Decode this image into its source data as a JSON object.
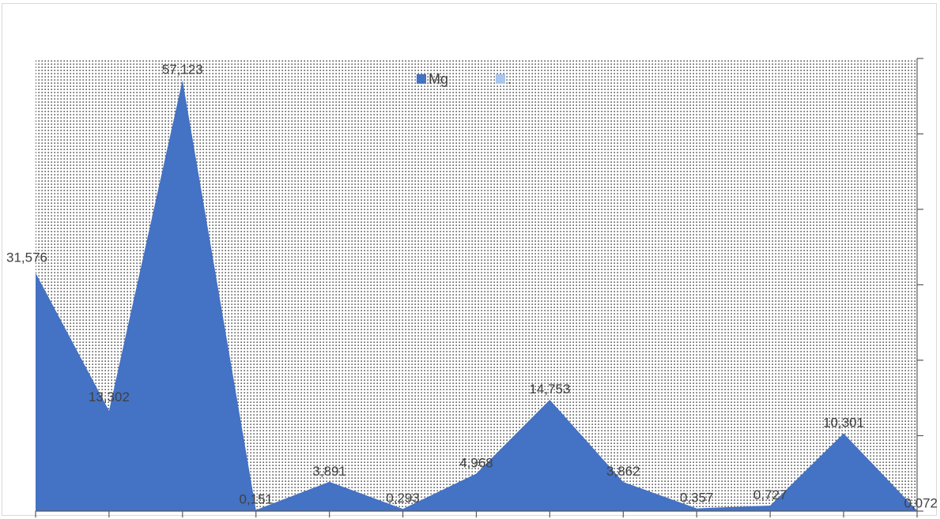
{
  "chart_data": {
    "type": "area",
    "title": "",
    "xlabel": "",
    "ylabel": "",
    "ylim": [
      0,
      60
    ],
    "x_count": 13,
    "series": [
      {
        "name": "Mg",
        "color": "#4472c4",
        "values": [
          31.576,
          13.302,
          57.123,
          0.151,
          3.891,
          0.293,
          4.968,
          14.753,
          3.862,
          0.357,
          0.727,
          10.301,
          0.072
        ],
        "labels": [
          "31,576",
          "13,302",
          "57,123",
          "0,151",
          "3,891",
          "0,293",
          "4,968",
          "14,753",
          "3,862",
          "0,357",
          "0,727",
          "10,301",
          "0,072"
        ]
      },
      {
        "name": ".",
        "color": "#a9c7ee",
        "values": []
      }
    ],
    "legend_position": "top",
    "plot_background": "dotted",
    "gridlines": false
  }
}
